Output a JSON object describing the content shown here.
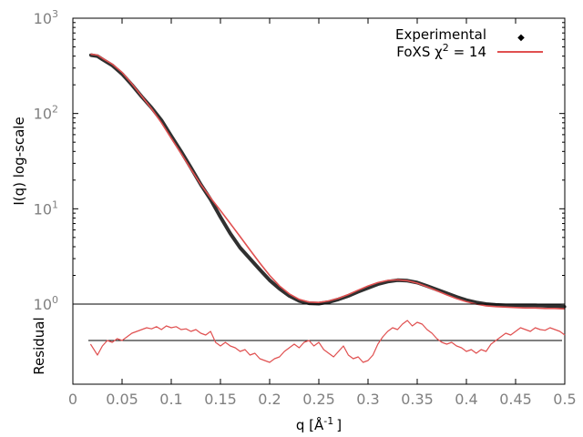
{
  "chart_data": [
    {
      "type": "line",
      "panel": "profile",
      "ylabel": "I(q) log-scale",
      "yscale": "log",
      "ylim": [
        1,
        1000
      ],
      "xlim": [
        0,
        0.5
      ],
      "yticks": [
        {
          "base": "10",
          "exp": "0",
          "value": 1
        },
        {
          "base": "10",
          "exp": "1",
          "value": 10
        },
        {
          "base": "10",
          "exp": "2",
          "value": 100
        },
        {
          "base": "10",
          "exp": "3",
          "value": 1000
        }
      ],
      "legend": {
        "position": "top-right",
        "entries": [
          {
            "label": "Experimental",
            "marker": "point",
            "color": "#000000"
          },
          {
            "label_prefix": "FoXS χ",
            "label_sup": "2",
            "label_suffix": " = 14",
            "marker": "line",
            "color": "#e05050"
          }
        ]
      },
      "series": [
        {
          "name": "Experimental",
          "color": "#303030",
          "x": [
            0.018,
            0.025,
            0.03,
            0.04,
            0.05,
            0.06,
            0.07,
            0.08,
            0.09,
            0.1,
            0.11,
            0.12,
            0.13,
            0.14,
            0.15,
            0.16,
            0.17,
            0.18,
            0.19,
            0.2,
            0.21,
            0.22,
            0.23,
            0.24,
            0.25,
            0.26,
            0.27,
            0.28,
            0.29,
            0.3,
            0.31,
            0.32,
            0.33,
            0.34,
            0.35,
            0.36,
            0.37,
            0.38,
            0.39,
            0.4,
            0.41,
            0.42,
            0.43,
            0.44,
            0.45,
            0.46,
            0.47,
            0.48,
            0.49,
            0.5
          ],
          "y": [
            410,
            400,
            370,
            320,
            260,
            200,
            150,
            115,
            85,
            58,
            40,
            27,
            18,
            12.5,
            8.2,
            5.5,
            3.9,
            3.0,
            2.3,
            1.78,
            1.45,
            1.22,
            1.08,
            1.02,
            1.01,
            1.05,
            1.12,
            1.22,
            1.35,
            1.48,
            1.62,
            1.72,
            1.78,
            1.76,
            1.68,
            1.55,
            1.42,
            1.3,
            1.19,
            1.1,
            1.04,
            1.0,
            0.98,
            0.97,
            0.97,
            0.97,
            0.97,
            0.96,
            0.95,
            0.94
          ]
        },
        {
          "name": "FoXS",
          "color": "#e05050",
          "x": [
            0.018,
            0.025,
            0.03,
            0.04,
            0.05,
            0.06,
            0.07,
            0.08,
            0.09,
            0.1,
            0.11,
            0.12,
            0.13,
            0.14,
            0.15,
            0.16,
            0.17,
            0.18,
            0.19,
            0.2,
            0.21,
            0.22,
            0.23,
            0.24,
            0.25,
            0.26,
            0.27,
            0.28,
            0.29,
            0.3,
            0.31,
            0.32,
            0.33,
            0.34,
            0.35,
            0.36,
            0.37,
            0.38,
            0.39,
            0.4,
            0.41,
            0.42,
            0.43,
            0.44,
            0.45,
            0.46,
            0.47,
            0.48,
            0.49,
            0.5
          ],
          "y": [
            420,
            410,
            380,
            330,
            270,
            205,
            152,
            112,
            80,
            55,
            38,
            26,
            18,
            13,
            9.6,
            7.0,
            5.1,
            3.7,
            2.7,
            2.0,
            1.55,
            1.28,
            1.12,
            1.05,
            1.04,
            1.08,
            1.15,
            1.26,
            1.4,
            1.55,
            1.68,
            1.77,
            1.8,
            1.76,
            1.66,
            1.52,
            1.38,
            1.25,
            1.14,
            1.06,
            1.0,
            0.96,
            0.94,
            0.93,
            0.92,
            0.91,
            0.91,
            0.9,
            0.9,
            0.89
          ]
        }
      ]
    },
    {
      "type": "line",
      "panel": "residual",
      "ylabel": "Residual",
      "xlabel_prefix": "q [Å",
      "xlabel_sup": "-1",
      "xlabel_suffix": "]",
      "xlim": [
        0,
        0.5
      ],
      "ylim": [
        -1,
        1
      ],
      "xticks": [
        "0",
        "0.05",
        "0.1",
        "0.15",
        "0.2",
        "0.25",
        "0.3",
        "0.35",
        "0.4",
        "0.45",
        "0.5"
      ],
      "reference_line": 0,
      "series": [
        {
          "name": "Residual",
          "color": "#e05050",
          "x": [
            0.018,
            0.025,
            0.03,
            0.035,
            0.04,
            0.045,
            0.05,
            0.055,
            0.06,
            0.065,
            0.07,
            0.075,
            0.08,
            0.085,
            0.09,
            0.095,
            0.1,
            0.105,
            0.11,
            0.115,
            0.12,
            0.125,
            0.13,
            0.135,
            0.14,
            0.145,
            0.15,
            0.155,
            0.16,
            0.165,
            0.17,
            0.175,
            0.18,
            0.185,
            0.19,
            0.195,
            0.2,
            0.205,
            0.21,
            0.215,
            0.22,
            0.225,
            0.23,
            0.235,
            0.24,
            0.245,
            0.25,
            0.255,
            0.26,
            0.265,
            0.27,
            0.275,
            0.28,
            0.285,
            0.29,
            0.295,
            0.3,
            0.305,
            0.31,
            0.315,
            0.32,
            0.325,
            0.33,
            0.335,
            0.34,
            0.345,
            0.35,
            0.355,
            0.36,
            0.365,
            0.37,
            0.375,
            0.38,
            0.385,
            0.39,
            0.395,
            0.4,
            0.405,
            0.41,
            0.415,
            0.42,
            0.425,
            0.43,
            0.435,
            0.44,
            0.445,
            0.45,
            0.455,
            0.46,
            0.465,
            0.47,
            0.475,
            0.48,
            0.485,
            0.49,
            0.495,
            0.5
          ],
          "y": [
            -0.1,
            -0.4,
            -0.15,
            0.0,
            -0.05,
            0.05,
            0.0,
            0.1,
            0.2,
            0.25,
            0.3,
            0.35,
            0.32,
            0.38,
            0.3,
            0.4,
            0.35,
            0.38,
            0.3,
            0.32,
            0.25,
            0.3,
            0.2,
            0.15,
            0.25,
            -0.05,
            -0.15,
            -0.05,
            -0.15,
            -0.2,
            -0.3,
            -0.25,
            -0.4,
            -0.35,
            -0.5,
            -0.55,
            -0.6,
            -0.5,
            -0.45,
            -0.3,
            -0.2,
            -0.1,
            -0.2,
            -0.05,
            0.0,
            -0.15,
            -0.05,
            -0.25,
            -0.35,
            -0.45,
            -0.3,
            -0.15,
            -0.4,
            -0.5,
            -0.45,
            -0.6,
            -0.55,
            -0.4,
            -0.1,
            0.1,
            0.25,
            0.35,
            0.3,
            0.45,
            0.55,
            0.4,
            0.5,
            0.45,
            0.3,
            0.2,
            0.05,
            -0.05,
            -0.1,
            -0.05,
            -0.15,
            -0.2,
            -0.3,
            -0.25,
            -0.35,
            -0.25,
            -0.3,
            -0.1,
            0.0,
            0.1,
            0.2,
            0.15,
            0.25,
            0.35,
            0.3,
            0.25,
            0.35,
            0.3,
            0.28,
            0.35,
            0.3,
            0.25,
            0.15
          ]
        }
      ]
    }
  ]
}
